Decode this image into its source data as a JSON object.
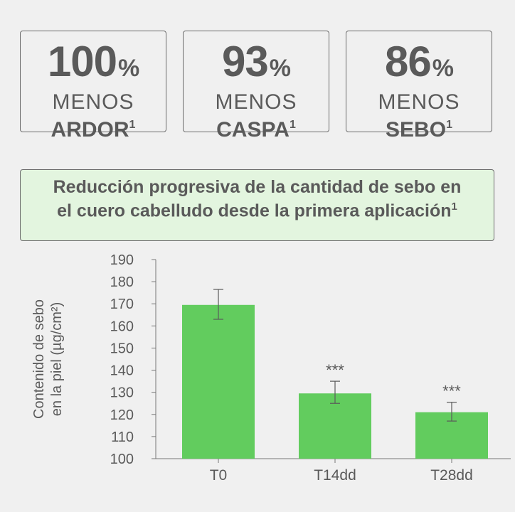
{
  "stats": [
    {
      "value": "100",
      "unit": "%",
      "line1": "MENOS",
      "line2": "ARDOR",
      "note": "1"
    },
    {
      "value": "93",
      "unit": "%",
      "line1": "MENOS",
      "line2": "CASPA",
      "note": "1"
    },
    {
      "value": "86",
      "unit": "%",
      "line1": "MENOS",
      "line2": "SEBO",
      "note": "1"
    }
  ],
  "banner": {
    "title": "Reducción progresiva de la cantidad de sebo en el cuero cabelludo desde la primera aplicación",
    "note": "1"
  },
  "colors": {
    "bar": "#62cc5e",
    "text": "#5a5a5a",
    "banner_bg": "#e3f5df",
    "border": "#6b6b6b",
    "background": "#f0f0f0"
  },
  "chart_data": {
    "type": "bar",
    "ylabel_line1": "Contenido de sebo",
    "ylabel_line2": "en la piel (µg/cm²)",
    "categories": [
      "T0",
      "T14dd",
      "T28dd"
    ],
    "values": [
      169.5,
      129.5,
      121.0
    ],
    "error_low": [
      163,
      125,
      117
    ],
    "error_high": [
      176.5,
      135,
      125.5
    ],
    "annotations": [
      "",
      "***",
      "***"
    ],
    "ylim": [
      100,
      190
    ],
    "yticks": [
      100,
      110,
      120,
      130,
      140,
      150,
      160,
      170,
      180,
      190
    ]
  }
}
